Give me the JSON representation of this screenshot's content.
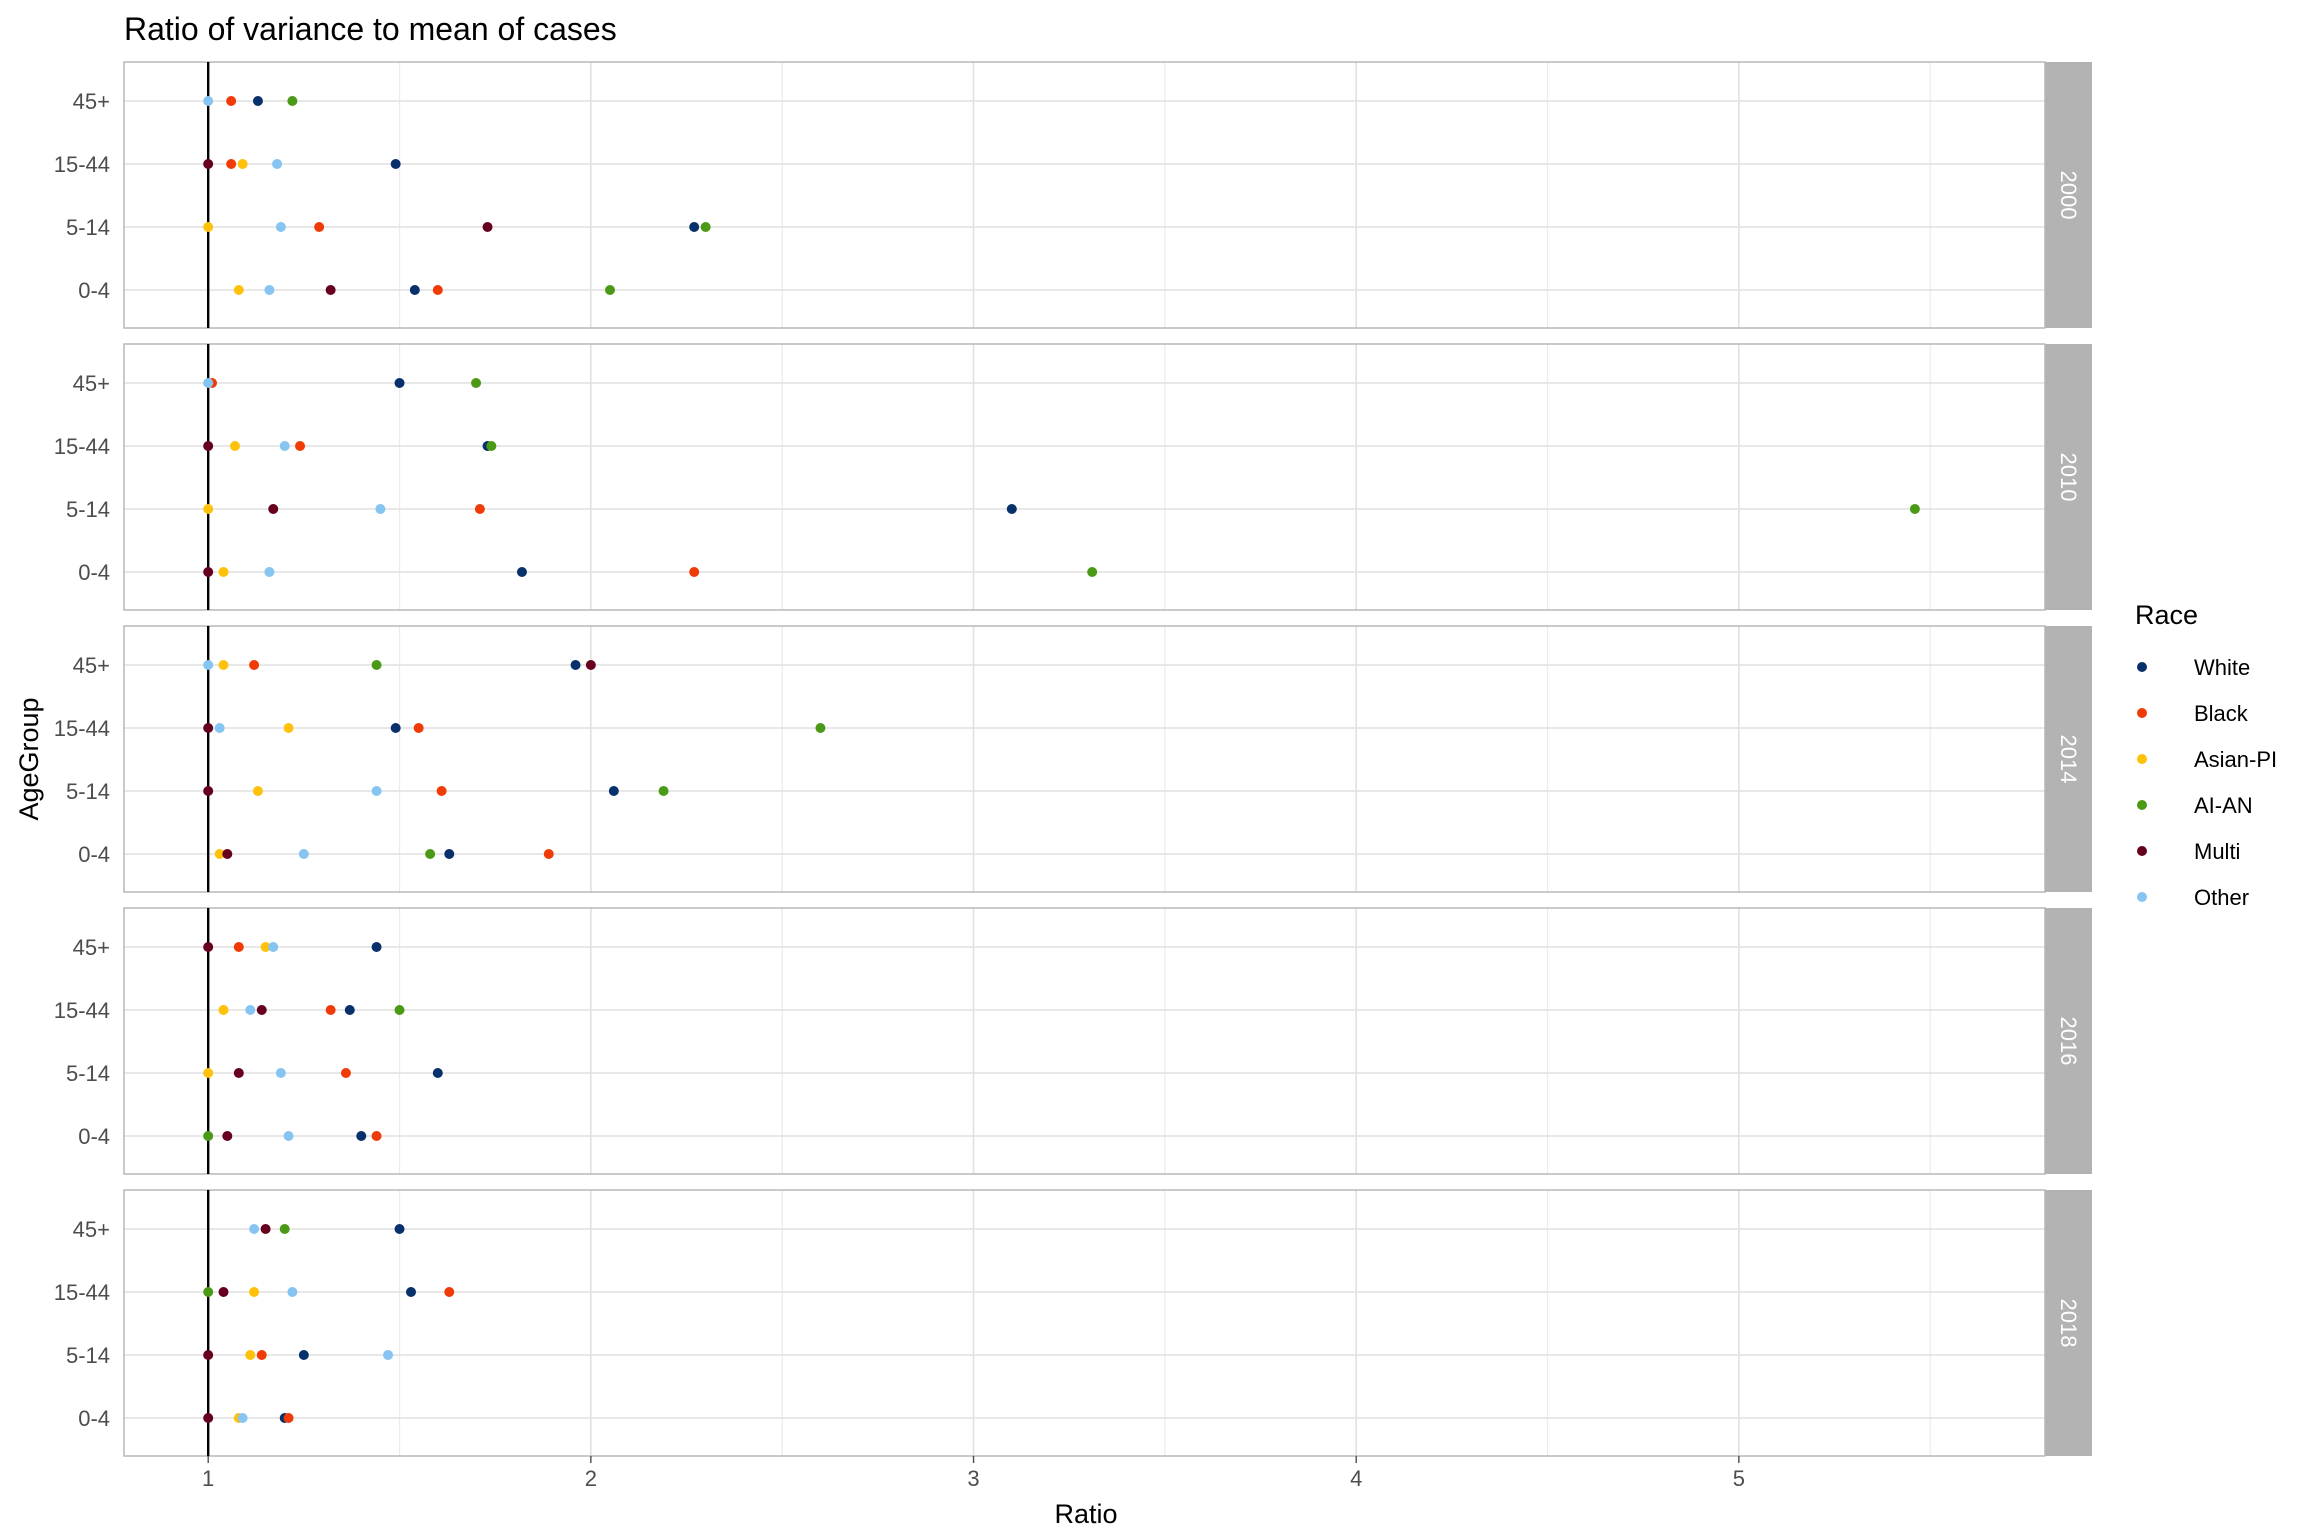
{
  "chart_data": {
    "type": "scatter",
    "title": "Ratio of variance to mean of cases",
    "xlabel": "Ratio",
    "ylabel": "AgeGroup",
    "xlim": [
      0.78,
      5.8
    ],
    "x_ticks": [
      1,
      2,
      3,
      4,
      5
    ],
    "categories": [
      "45+",
      "15-44",
      "5-14",
      "0-4"
    ],
    "reference_line": 1,
    "grid": true,
    "legend": {
      "title": "Race",
      "position": "right",
      "entries": [
        {
          "name": "White",
          "color": "#08306B"
        },
        {
          "name": "Black",
          "color": "#F03B07"
        },
        {
          "name": "Asian-PI",
          "color": "#FFC10A"
        },
        {
          "name": "AI-AN",
          "color": "#4B9A15"
        },
        {
          "name": "Multi",
          "color": "#67001F"
        },
        {
          "name": "Other",
          "color": "#86C4F2"
        }
      ]
    },
    "panels": [
      {
        "label": "2000",
        "points": {
          "45+": {
            "White": 1.13,
            "Black": 1.06,
            "AI-AN": 1.22,
            "Other": 1.0
          },
          "15-44": {
            "White": 1.49,
            "Black": 1.06,
            "Asian-PI": 1.09,
            "Multi": 1.0,
            "Other": 1.18
          },
          "5-14": {
            "White": 2.27,
            "Black": 1.29,
            "Asian-PI": 1.0,
            "AI-AN": 2.3,
            "Multi": 1.73,
            "Other": 1.19
          },
          "0-4": {
            "White": 1.54,
            "Black": 1.6,
            "Asian-PI": 1.08,
            "AI-AN": 2.05,
            "Multi": 1.32,
            "Other": 1.16
          }
        }
      },
      {
        "label": "2010",
        "points": {
          "45+": {
            "White": 1.5,
            "Black": 1.01,
            "AI-AN": 1.7,
            "Other": 1.0
          },
          "15-44": {
            "White": 1.73,
            "Black": 1.24,
            "Asian-PI": 1.07,
            "AI-AN": 1.74,
            "Multi": 1.0,
            "Other": 1.2
          },
          "5-14": {
            "White": 3.1,
            "Black": 1.71,
            "Asian-PI": 1.0,
            "AI-AN": 5.46,
            "Multi": 1.17,
            "Other": 1.45
          },
          "0-4": {
            "White": 1.82,
            "Black": 2.27,
            "Asian-PI": 1.04,
            "AI-AN": 3.31,
            "Multi": 1.0,
            "Other": 1.16
          }
        }
      },
      {
        "label": "2014",
        "points": {
          "45+": {
            "White": 1.96,
            "Black": 1.12,
            "Asian-PI": 1.04,
            "AI-AN": 1.44,
            "Multi": 2.0,
            "Other": 1.0
          },
          "15-44": {
            "White": 1.49,
            "Black": 1.55,
            "Asian-PI": 1.21,
            "AI-AN": 2.6,
            "Multi": 1.0,
            "Other": 1.03
          },
          "5-14": {
            "White": 2.06,
            "Black": 1.61,
            "Asian-PI": 1.13,
            "AI-AN": 2.19,
            "Multi": 1.0,
            "Other": 1.44
          },
          "0-4": {
            "White": 1.63,
            "Black": 1.89,
            "Asian-PI": 1.03,
            "AI-AN": 1.58,
            "Multi": 1.05,
            "Other": 1.25
          }
        }
      },
      {
        "label": "2016",
        "points": {
          "45+": {
            "White": 1.44,
            "Black": 1.08,
            "Asian-PI": 1.15,
            "Multi": 1.0,
            "Other": 1.17
          },
          "15-44": {
            "White": 1.37,
            "Black": 1.32,
            "Asian-PI": 1.04,
            "AI-AN": 1.5,
            "Multi": 1.14,
            "Other": 1.11
          },
          "5-14": {
            "White": 1.6,
            "Black": 1.36,
            "Asian-PI": 1.0,
            "Multi": 1.08,
            "Other": 1.19
          },
          "0-4": {
            "White": 1.4,
            "Black": 1.44,
            "AI-AN": 1.0,
            "Multi": 1.05,
            "Other": 1.21
          }
        }
      },
      {
        "label": "2018",
        "points": {
          "45+": {
            "White": 1.5,
            "AI-AN": 1.2,
            "Multi": 1.15,
            "Other": 1.12
          },
          "15-44": {
            "White": 1.53,
            "Black": 1.63,
            "Asian-PI": 1.12,
            "AI-AN": 1.0,
            "Multi": 1.04,
            "Other": 1.22
          },
          "5-14": {
            "White": 1.25,
            "Black": 1.14,
            "Asian-PI": 1.11,
            "Multi": 1.0,
            "Other": 1.47
          },
          "0-4": {
            "White": 1.2,
            "Black": 1.21,
            "Asian-PI": 1.08,
            "Multi": 1.0,
            "Other": 1.09
          }
        }
      }
    ]
  }
}
